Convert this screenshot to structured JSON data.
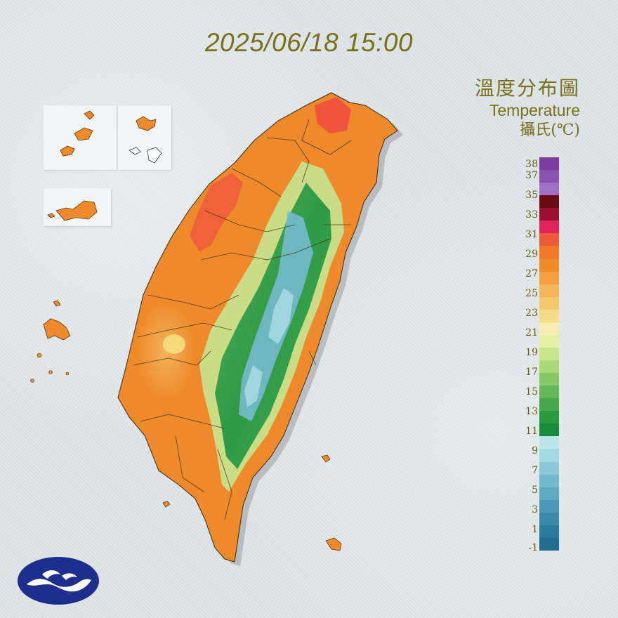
{
  "timestamp": "2025/06/18 15:00",
  "title": {
    "zh": "溫度分布圖",
    "en": "Temperature",
    "unit": "攝氏(℃)"
  },
  "legend": {
    "labels": [
      "38",
      "37",
      "35",
      "33",
      "31",
      "29",
      "27",
      "25",
      "23",
      "21",
      "19",
      "17",
      "15",
      "13",
      "11",
      "9",
      "7",
      "5",
      "3",
      "1",
      "-1"
    ],
    "colors": [
      "#7a3aa0",
      "#8a52b0",
      "#a070c0",
      "#6a0c16",
      "#9a1030",
      "#e0245a",
      "#ee5a3c",
      "#f07a28",
      "#ee8c2a",
      "#f4a040",
      "#f4b65a",
      "#f6c86c",
      "#f6dc88",
      "#f6eeb0",
      "#e4f0a6",
      "#c8e68c",
      "#a8d878",
      "#86c868",
      "#64b858",
      "#46a84a",
      "#2a9a40",
      "#188c3a",
      "#bce6ea",
      "#a4d8e2",
      "#8ccad8",
      "#74bace",
      "#5eaac2",
      "#4a9ab6",
      "#3a8aa8",
      "#2c7a9a",
      "#206c8c"
    ],
    "icon_names": [
      "cwa-logo-icon"
    ]
  }
}
